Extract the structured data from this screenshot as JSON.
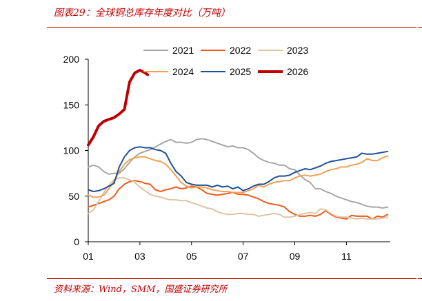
{
  "header": {
    "title": "图表29：全球铜总库存年度对比（万吨）"
  },
  "footer": {
    "source": "资料来源：Wind，SMM，国盛证券研究所"
  },
  "chart_data": {
    "type": "line",
    "title": "图表29：全球铜总库存年度对比（万吨）",
    "xlabel": "",
    "ylabel": "",
    "ylim": [
      0,
      200
    ],
    "yticks": [
      0,
      50,
      100,
      150,
      200
    ],
    "xlim": [
      1,
      12.7
    ],
    "xticks": [
      1,
      3,
      5,
      7,
      9,
      11
    ],
    "xtick_labels": [
      "01",
      "03",
      "05",
      "07",
      "09",
      "11"
    ],
    "grid": false,
    "legend": "top",
    "series": [
      {
        "name": "2021",
        "color": "#a6a6a6",
        "width": 2,
        "x": [
          1,
          1.2,
          1.4,
          1.6,
          1.8,
          2,
          2.2,
          2.4,
          2.6,
          2.8,
          3,
          3.2,
          3.4,
          3.6,
          3.8,
          4,
          4.2,
          4.4,
          4.6,
          4.8,
          5,
          5.2,
          5.4,
          5.6,
          5.8,
          6,
          6.2,
          6.4,
          6.6,
          6.8,
          7,
          7.2,
          7.4,
          7.6,
          7.8,
          8,
          8.2,
          8.4,
          8.6,
          8.8,
          9,
          9.2,
          9.4,
          9.6,
          9.8,
          10,
          10.2,
          10.4,
          10.6,
          10.8,
          11,
          11.2,
          11.4,
          11.6,
          11.8,
          12,
          12.2,
          12.4,
          12.6
        ],
        "y": [
          82,
          84,
          82,
          77,
          74,
          75,
          75,
          80,
          87,
          93,
          97,
          99,
          101,
          104,
          107,
          110,
          112,
          109,
          109,
          108,
          109,
          112,
          113,
          112,
          110,
          108,
          106,
          104,
          105,
          103,
          103,
          101,
          97,
          92,
          89,
          87,
          86,
          84,
          84,
          80,
          79,
          73,
          68,
          65,
          58,
          58,
          55,
          53,
          50,
          48,
          46,
          44,
          43,
          41,
          39,
          38,
          38,
          37,
          38
        ]
      },
      {
        "name": "2022",
        "color": "#f05a1a",
        "width": 2,
        "x": [
          1,
          1.2,
          1.4,
          1.6,
          1.8,
          2,
          2.2,
          2.4,
          2.6,
          2.8,
          3,
          3.2,
          3.4,
          3.6,
          3.8,
          4,
          4.2,
          4.4,
          4.6,
          4.8,
          5,
          5.2,
          5.4,
          5.6,
          5.8,
          6,
          6.2,
          6.4,
          6.6,
          6.8,
          7,
          7.2,
          7.4,
          7.6,
          7.8,
          8,
          8.2,
          8.4,
          8.6,
          8.8,
          9,
          9.2,
          9.4,
          9.6,
          9.8,
          10,
          10.2,
          10.4,
          10.6,
          10.8,
          11,
          11.2,
          11.4,
          11.6,
          11.8,
          12,
          12.2,
          12.4,
          12.6
        ],
        "y": [
          38,
          40,
          42,
          44,
          46,
          50,
          58,
          63,
          66,
          67,
          66,
          64,
          63,
          57,
          55,
          57,
          58,
          60,
          58,
          59,
          61,
          60,
          57,
          53,
          52,
          51,
          52,
          53,
          54,
          52,
          52,
          51,
          49,
          47,
          44,
          42,
          41,
          40,
          38,
          33,
          30,
          28,
          28,
          29,
          28,
          30,
          34,
          30,
          27,
          26,
          25,
          29,
          28,
          28,
          28,
          25,
          28,
          27,
          30
        ]
      },
      {
        "name": "2023",
        "color": "#ddc4a2",
        "width": 2,
        "x": [
          1,
          1.2,
          1.4,
          1.6,
          1.8,
          2,
          2.2,
          2.4,
          2.6,
          2.8,
          3,
          3.2,
          3.4,
          3.6,
          3.8,
          4,
          4.2,
          4.4,
          4.6,
          4.8,
          5,
          5.2,
          5.4,
          5.6,
          5.8,
          6,
          6.2,
          6.4,
          6.6,
          6.8,
          7,
          7.2,
          7.4,
          7.6,
          7.8,
          8,
          8.2,
          8.4,
          8.6,
          8.8,
          9,
          9.2,
          9.4,
          9.6,
          9.8,
          10,
          10.2,
          10.4,
          10.6,
          10.8,
          11,
          11.2,
          11.4,
          11.6,
          11.8,
          12,
          12.2,
          12.4,
          12.6
        ],
        "y": [
          31,
          35,
          44,
          54,
          62,
          68,
          70,
          70,
          68,
          65,
          60,
          56,
          52,
          50,
          49,
          47,
          46,
          46,
          45,
          45,
          43,
          41,
          39,
          37,
          36,
          33,
          31,
          30,
          30,
          31,
          31,
          30,
          30,
          28,
          29,
          30,
          31,
          30,
          27,
          27,
          28,
          30,
          31,
          32,
          31,
          36,
          35,
          31,
          28,
          27,
          27,
          26,
          25,
          26,
          25,
          25,
          25,
          26,
          27
        ]
      },
      {
        "name": "2024",
        "color": "#f0a050",
        "width": 2,
        "x": [
          1,
          1.2,
          1.4,
          1.6,
          1.8,
          2,
          2.2,
          2.4,
          2.6,
          2.8,
          3,
          3.2,
          3.4,
          3.6,
          3.8,
          4,
          4.2,
          4.4,
          4.6,
          4.8,
          5,
          5.2,
          5.4,
          5.6,
          5.8,
          6,
          6.2,
          6.4,
          6.6,
          6.8,
          7,
          7.2,
          7.4,
          7.6,
          7.8,
          8,
          8.2,
          8.4,
          8.6,
          8.8,
          9,
          9.2,
          9.4,
          9.6,
          9.8,
          10,
          10.2,
          10.4,
          10.6,
          10.8,
          11,
          11.2,
          11.4,
          11.6,
          11.8,
          12,
          12.2,
          12.4,
          12.6
        ],
        "y": [
          51,
          49,
          49,
          51,
          58,
          66,
          77,
          85,
          90,
          92,
          93,
          93,
          91,
          89,
          88,
          85,
          79,
          72,
          65,
          61,
          59,
          60,
          60,
          59,
          57,
          56,
          55,
          55,
          54,
          54,
          54,
          56,
          58,
          62,
          60,
          63,
          65,
          66,
          67,
          67,
          70,
          72,
          73,
          72,
          73,
          74,
          77,
          79,
          80,
          82,
          82,
          84,
          85,
          87,
          91,
          89,
          89,
          92,
          94
        ]
      },
      {
        "name": "2025",
        "color": "#1f4e96",
        "width": 2,
        "x": [
          1,
          1.2,
          1.4,
          1.6,
          1.8,
          2,
          2.2,
          2.4,
          2.6,
          2.8,
          3,
          3.2,
          3.4,
          3.6,
          3.8,
          4,
          4.2,
          4.4,
          4.6,
          4.8,
          5,
          5.2,
          5.4,
          5.6,
          5.8,
          6,
          6.2,
          6.4,
          6.6,
          6.8,
          7,
          7.2,
          7.4,
          7.6,
          7.8,
          8,
          8.2,
          8.4,
          8.6,
          8.8,
          9,
          9.2,
          9.4,
          9.6,
          9.8,
          10,
          10.2,
          10.4,
          10.6,
          10.8,
          11,
          11.2,
          11.4,
          11.6,
          11.8,
          12,
          12.2,
          12.4,
          12.6
        ],
        "y": [
          57,
          55,
          56,
          58,
          61,
          64,
          82,
          93,
          100,
          103,
          104,
          103,
          103,
          101,
          100,
          97,
          86,
          77,
          72,
          65,
          63,
          62,
          62,
          62,
          60,
          62,
          60,
          61,
          58,
          60,
          56,
          58,
          61,
          63,
          63,
          66,
          70,
          72,
          72,
          73,
          76,
          78,
          80,
          79,
          81,
          83,
          86,
          88,
          89,
          90,
          91,
          92,
          93,
          97,
          96,
          96,
          97,
          98,
          99
        ]
      },
      {
        "name": "2026",
        "color": "#c00000",
        "width": 4,
        "x": [
          1,
          1.2,
          1.4,
          1.6,
          1.8,
          2,
          2.2,
          2.4,
          2.6,
          2.8,
          3,
          3.2,
          3.3
        ],
        "y": [
          106,
          115,
          127,
          132,
          134,
          136,
          140,
          145,
          175,
          185,
          188,
          185,
          183
        ]
      }
    ]
  }
}
